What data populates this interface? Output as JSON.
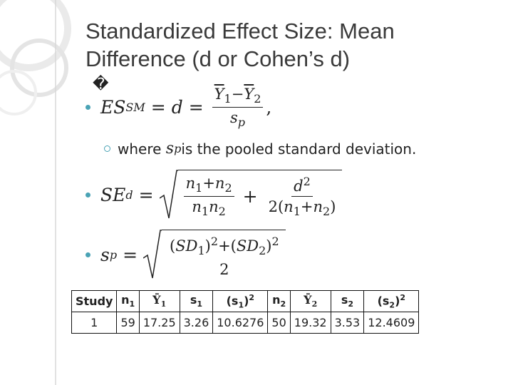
{
  "title": "Standardized Effect Size: Mean Difference (d or Cohen’s d)",
  "formula1": {
    "glyph": "�",
    "symbol": "ES",
    "sub": "SM",
    "eq1": "=",
    "var": "d",
    "eq2": "=",
    "numerator": {
      "a": "Y",
      "a_sub": "1",
      "op": "−",
      "b": "Y",
      "b_sub": "2"
    },
    "denominator": {
      "symbol": "s",
      "sub": "p"
    },
    "trailing": ","
  },
  "note": {
    "before": "where",
    "symbol": "s",
    "sub": "p",
    "after": "is the pooled standard deviation."
  },
  "formula2": {
    "symbol": "SE",
    "sub": "d",
    "eq": "=",
    "frac1": {
      "num": [
        "n",
        "1",
        "+",
        "n",
        "2"
      ],
      "den": [
        "n",
        "1",
        "n",
        "2"
      ]
    },
    "plus": "+",
    "frac2": {
      "num": [
        "d",
        "2"
      ],
      "den": [
        "2(",
        "n",
        "1",
        "+",
        "n",
        "2",
        ")"
      ]
    }
  },
  "formula3": {
    "symbol": "s",
    "sub": "p",
    "eq": "=",
    "num": [
      "(",
      "SD",
      "1",
      ")",
      "2",
      "+(",
      "SD",
      "2",
      ")",
      "2"
    ],
    "den": "2"
  },
  "table": {
    "header": [
      {
        "text": "Study"
      },
      {
        "text": "n",
        "sub": "1"
      },
      {
        "text": "Ȳ",
        "sub": "1"
      },
      {
        "text": "s",
        "sub": "1"
      },
      {
        "text": "(s",
        "sub": "1",
        "after": ")",
        "sup": "2"
      },
      {
        "text": "n",
        "sub": "2"
      },
      {
        "text": "Ȳ",
        "sub": "2"
      },
      {
        "text": "s",
        "sub": "2"
      },
      {
        "text": "(s",
        "sub": "2",
        "after": ")",
        "sup": "2"
      }
    ],
    "rows": [
      [
        1,
        59,
        17.25,
        3.26,
        10.6276,
        50,
        19.32,
        3.53,
        12.4609
      ]
    ]
  }
}
